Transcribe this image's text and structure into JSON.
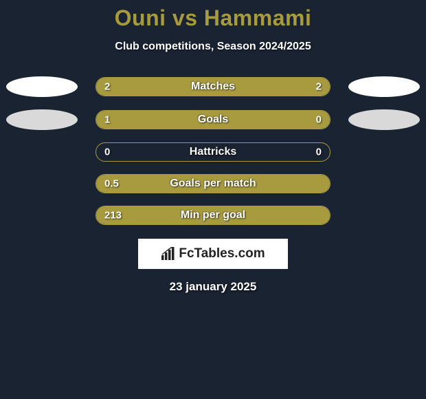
{
  "title": "Ouni vs Hammami",
  "subtitle": "Club competitions, Season 2024/2025",
  "date": "23 january 2025",
  "logo_text": "FcTables.com",
  "colors": {
    "background": "#1a2332",
    "accent": "#a89b3f",
    "oval_light": "#ffffff",
    "oval_mid": "#d9d9d9",
    "text": "#ffffff"
  },
  "stats": [
    {
      "label": "Matches",
      "left_value": "2",
      "right_value": "2",
      "left_fill_pct": 50,
      "right_fill_pct": 50,
      "show_ovals": true,
      "oval_left_color": "#ffffff",
      "oval_right_color": "#ffffff"
    },
    {
      "label": "Goals",
      "left_value": "1",
      "right_value": "0",
      "left_fill_pct": 78,
      "right_fill_pct": 22,
      "show_ovals": true,
      "oval_left_color": "#d9d9d9",
      "oval_right_color": "#d9d9d9"
    },
    {
      "label": "Hattricks",
      "left_value": "0",
      "right_value": "0",
      "left_fill_pct": 0,
      "right_fill_pct": 0,
      "show_ovals": false
    },
    {
      "label": "Goals per match",
      "left_value": "0.5",
      "right_value": "",
      "left_fill_pct": 100,
      "right_fill_pct": 0,
      "show_ovals": false
    },
    {
      "label": "Min per goal",
      "left_value": "213",
      "right_value": "",
      "left_fill_pct": 100,
      "right_fill_pct": 0,
      "show_ovals": false
    }
  ]
}
